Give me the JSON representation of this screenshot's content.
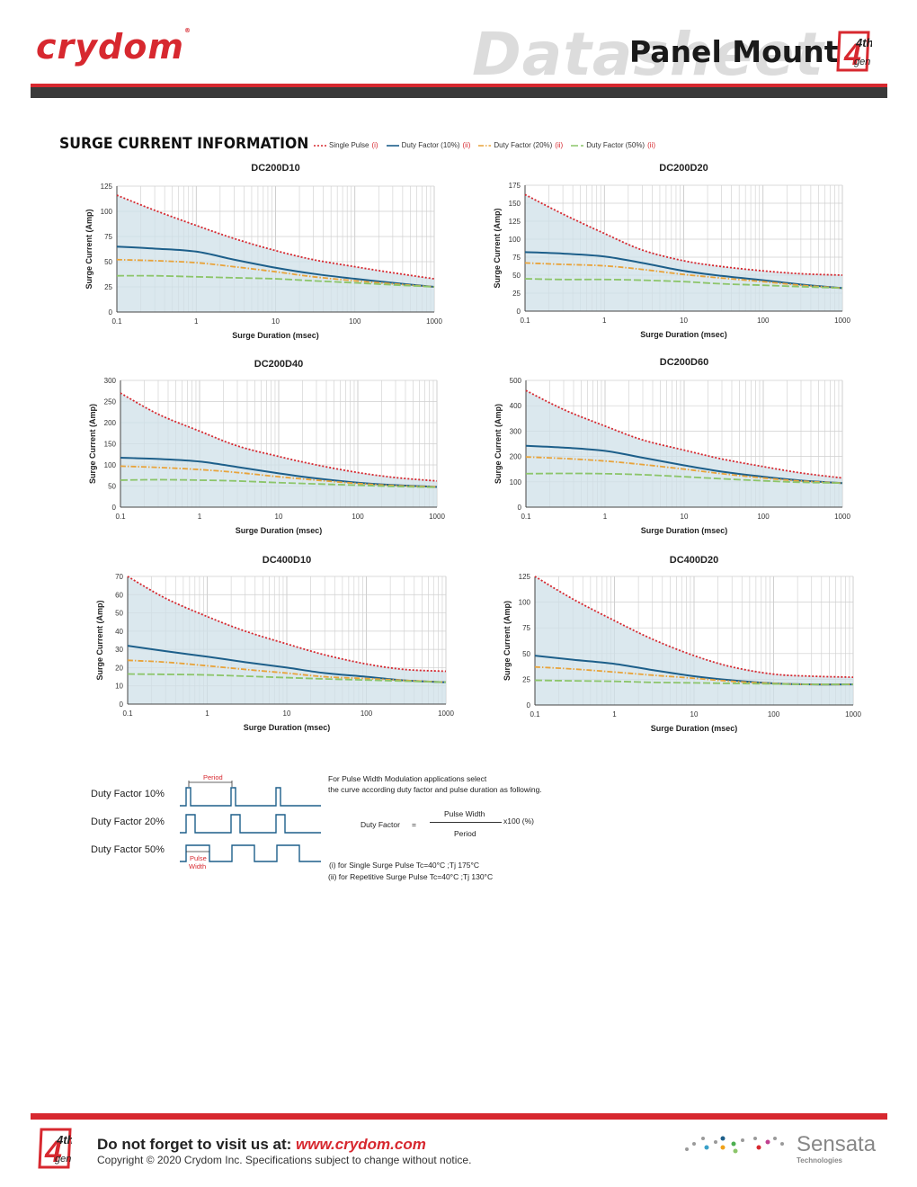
{
  "header": {
    "brand": "crydom",
    "watermark": "Datasheet",
    "title": "Panel Mount",
    "badge_top": "4th",
    "badge_sub": "gen"
  },
  "section": {
    "title": "SURGE CURRENT INFORMATION",
    "legend": [
      {
        "label": "Single Pulse",
        "note": "(i)",
        "color": "#d7282f",
        "dash": "dot"
      },
      {
        "label": "Duty Factor (10%)",
        "note": "(ii)",
        "color": "#1d5f8a",
        "dash": "solid"
      },
      {
        "label": "Duty Factor (20%)",
        "note": "(ii)",
        "color": "#e8a33a",
        "dash": "dashdot"
      },
      {
        "label": "Duty Factor (50%)",
        "note": "(ii)",
        "color": "#8cc56a",
        "dash": "dash"
      }
    ]
  },
  "chart_data": [
    {
      "type": "line",
      "title": "DC200D10",
      "xlabel": "Surge Duration (msec)",
      "ylabel": "Surge Current (Amp)",
      "xscale": "log",
      "xlim": [
        0.1,
        1000
      ],
      "ylim": [
        0,
        125
      ],
      "yticks": [
        0,
        25,
        50,
        75,
        100,
        125
      ],
      "xticks": [
        0.1,
        1,
        10,
        100,
        1000
      ],
      "xticklabels": [
        "0.1",
        "1",
        "10",
        "100",
        "1000"
      ],
      "x": [
        0.1,
        0.3,
        1,
        3,
        10,
        30,
        100,
        300,
        1000
      ],
      "series": [
        {
          "name": "Single Pulse",
          "values": [
            116,
            101,
            86,
            73,
            61,
            52,
            45,
            39,
            33
          ]
        },
        {
          "name": "Duty Factor (10%)",
          "values": [
            65,
            63,
            60,
            52,
            44,
            38,
            33,
            29,
            25
          ]
        },
        {
          "name": "Duty Factor (20%)",
          "values": [
            52,
            51,
            49,
            45,
            40,
            35,
            31,
            28,
            25
          ]
        },
        {
          "name": "Duty Factor (50%)",
          "values": [
            36,
            36,
            35,
            34,
            33,
            31,
            29,
            27,
            25
          ]
        }
      ]
    },
    {
      "type": "line",
      "title": "DC200D20",
      "xlabel": "Surge Duration (msec)",
      "ylabel": "Surge Current (Amp)",
      "xscale": "log",
      "xlim": [
        0.1,
        1000
      ],
      "ylim": [
        0,
        175
      ],
      "yticks": [
        0,
        25,
        50,
        75,
        100,
        125,
        150,
        175
      ],
      "xticks": [
        0.1,
        1,
        10,
        100,
        1000
      ],
      "xticklabels": [
        "0.1",
        "1",
        "10",
        "100",
        "1000"
      ],
      "x": [
        0.1,
        0.3,
        1,
        3,
        10,
        30,
        100,
        300,
        1000
      ],
      "series": [
        {
          "name": "Single Pulse",
          "values": [
            162,
            135,
            108,
            85,
            70,
            62,
            56,
            52,
            50
          ]
        },
        {
          "name": "Duty Factor (10%)",
          "values": [
            82,
            80,
            76,
            67,
            56,
            49,
            43,
            37,
            32
          ]
        },
        {
          "name": "Duty Factor (20%)",
          "values": [
            67,
            65,
            63,
            58,
            51,
            46,
            41,
            36,
            32
          ]
        },
        {
          "name": "Duty Factor (50%)",
          "values": [
            45,
            44,
            44,
            43,
            41,
            38,
            36,
            34,
            32
          ]
        }
      ]
    },
    {
      "type": "line",
      "title": "DC200D40",
      "xlabel": "Surge Duration (msec)",
      "ylabel": "Surge Current (Amp)",
      "xscale": "log",
      "xlim": [
        0.1,
        1000
      ],
      "ylim": [
        0,
        300
      ],
      "yticks": [
        0,
        50,
        100,
        150,
        200,
        250,
        300
      ],
      "xticks": [
        0.1,
        1,
        10,
        100,
        1000
      ],
      "xticklabels": [
        "0.1",
        "1",
        "10",
        "100",
        "1000"
      ],
      "x": [
        0.1,
        0.3,
        1,
        3,
        10,
        30,
        100,
        300,
        1000
      ],
      "series": [
        {
          "name": "Single Pulse",
          "values": [
            270,
            220,
            180,
            145,
            120,
            100,
            82,
            70,
            62
          ]
        },
        {
          "name": "Duty Factor (10%)",
          "values": [
            117,
            114,
            108,
            95,
            80,
            68,
            58,
            52,
            48
          ]
        },
        {
          "name": "Duty Factor (20%)",
          "values": [
            97,
            94,
            89,
            82,
            72,
            64,
            56,
            51,
            48
          ]
        },
        {
          "name": "Duty Factor (50%)",
          "values": [
            64,
            65,
            64,
            62,
            58,
            55,
            52,
            49,
            47
          ]
        }
      ]
    },
    {
      "type": "line",
      "title": "DC200D60",
      "xlabel": "Surge Duration (msec)",
      "ylabel": "Surge Current (Amp)",
      "xscale": "log",
      "xlim": [
        0.1,
        1000
      ],
      "ylim": [
        0,
        500
      ],
      "yticks": [
        0,
        100,
        200,
        300,
        400,
        500
      ],
      "xticks": [
        0.1,
        1,
        10,
        100,
        1000
      ],
      "xticklabels": [
        "0.1",
        "1",
        "10",
        "100",
        "1000"
      ],
      "x": [
        0.1,
        0.3,
        1,
        3,
        10,
        30,
        100,
        300,
        1000
      ],
      "series": [
        {
          "name": "Single Pulse",
          "values": [
            460,
            385,
            320,
            265,
            225,
            190,
            160,
            135,
            115
          ]
        },
        {
          "name": "Duty Factor (10%)",
          "values": [
            242,
            235,
            222,
            195,
            165,
            140,
            120,
            105,
            95
          ]
        },
        {
          "name": "Duty Factor (20%)",
          "values": [
            198,
            192,
            182,
            168,
            150,
            132,
            115,
            103,
            95
          ]
        },
        {
          "name": "Duty Factor (50%)",
          "values": [
            132,
            133,
            132,
            128,
            120,
            112,
            104,
            98,
            95
          ]
        }
      ]
    },
    {
      "type": "line",
      "title": "DC400D10",
      "xlabel": "Surge Duration (msec)",
      "ylabel": "Surge Current (Amp)",
      "xscale": "log",
      "xlim": [
        0.1,
        1000
      ],
      "ylim": [
        0,
        70
      ],
      "yticks": [
        0,
        10,
        20,
        30,
        40,
        50,
        60,
        70
      ],
      "xticks": [
        0.1,
        1,
        10,
        100,
        1000
      ],
      "xticklabels": [
        "0.1",
        "1",
        "10",
        "100",
        "1000"
      ],
      "x": [
        0.1,
        0.3,
        1,
        3,
        10,
        30,
        100,
        300,
        1000
      ],
      "series": [
        {
          "name": "Single Pulse",
          "values": [
            70,
            58,
            48,
            40,
            33,
            27,
            22,
            19,
            18
          ]
        },
        {
          "name": "Duty Factor (10%)",
          "values": [
            32,
            29,
            26,
            23,
            20,
            17,
            15,
            13,
            12
          ]
        },
        {
          "name": "Duty Factor (20%)",
          "values": [
            24,
            23,
            21,
            19,
            17,
            15,
            14,
            13,
            12
          ]
        },
        {
          "name": "Duty Factor (50%)",
          "values": [
            16.5,
            16.3,
            16,
            15.3,
            14.5,
            13.8,
            13.2,
            12.6,
            12
          ]
        }
      ]
    },
    {
      "type": "line",
      "title": "DC400D20",
      "xlabel": "Surge Duration (msec)",
      "ylabel": "Surge Current (Amp)",
      "xscale": "log",
      "xlim": [
        0.1,
        1000
      ],
      "ylim": [
        0,
        125
      ],
      "yticks": [
        0,
        25,
        50,
        75,
        100,
        125
      ],
      "xticks": [
        0.1,
        1,
        10,
        100,
        1000
      ],
      "xticklabels": [
        "0.1",
        "1",
        "10",
        "100",
        "1000"
      ],
      "x": [
        0.1,
        0.3,
        1,
        3,
        10,
        30,
        100,
        300,
        1000
      ],
      "series": [
        {
          "name": "Single Pulse",
          "values": [
            125,
            103,
            82,
            64,
            48,
            37,
            30,
            28,
            27
          ]
        },
        {
          "name": "Duty Factor (10%)",
          "values": [
            48,
            44,
            40,
            34,
            28,
            24,
            21,
            20,
            20
          ]
        },
        {
          "name": "Duty Factor (20%)",
          "values": [
            37,
            35,
            32,
            29,
            26,
            23,
            21,
            20,
            20
          ]
        },
        {
          "name": "Duty Factor (50%)",
          "values": [
            24,
            23.5,
            23,
            22,
            21.5,
            21,
            20.5,
            20,
            20
          ]
        }
      ]
    }
  ],
  "duty": {
    "labels": [
      "Duty Factor 10%",
      "Duty Factor 20%",
      "Duty Factor 50%"
    ],
    "period_label": "Period",
    "pulse_label_1": "Pulse",
    "pulse_label_2": "Width",
    "note_line1": "For Pulse Width  Modulation applications select",
    "note_line2": "the curve according duty factor and pulse duration as following.",
    "formula_lhs": "Duty Factor",
    "formula_eq": "=",
    "numerator": "Pulse Width",
    "denominator": "Period",
    "multiplier": "x100 (%)",
    "footnote1": "(i) for Single Surge  Pulse  Tc=40°C ;Tj 175°C",
    "footnote2": "(ii) for Repetitive  Surge Pulse  Tc=40°C ;Tj 130°C"
  },
  "footer": {
    "visit_text": "Do not forget to visit us at: ",
    "url": "www.crydom.com",
    "copyright": "Copyright © 2020 Crydom Inc. Specifications subject to change without notice.",
    "sensata": "Sensata",
    "sensata_sub": "Technologies"
  }
}
